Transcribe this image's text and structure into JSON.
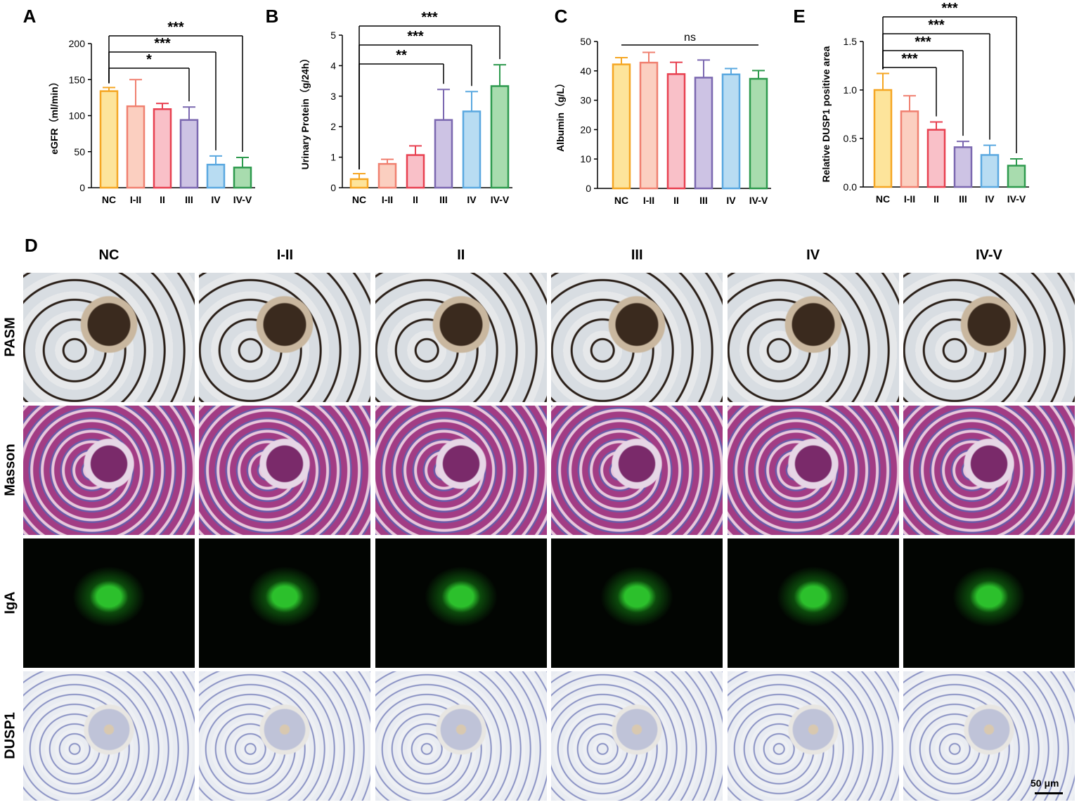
{
  "chart_data": [
    {
      "type": "bar",
      "panel": "A",
      "ylabel": "eGFR（ml/min）",
      "categories": [
        "NC",
        "I-II",
        "II",
        "III",
        "IV",
        "IV-V"
      ],
      "values": [
        134,
        113,
        109,
        94,
        32,
        28
      ],
      "errors": [
        5,
        37,
        8,
        18,
        12,
        14
      ],
      "colors": [
        "#fde49b",
        "#fbcfc0",
        "#f9c0c8",
        "#cdc3e4",
        "#b8dcf2",
        "#a8dcae"
      ],
      "edge_colors": [
        "#f5a623",
        "#f08070",
        "#e84050",
        "#7b68b0",
        "#5aa8e0",
        "#2e9a4e"
      ],
      "ylim": [
        0,
        200
      ],
      "yticks": [
        0,
        50,
        100,
        150,
        200
      ],
      "annotations": [
        {
          "text": "*",
          "pair": [
            "NC",
            "III"
          ]
        },
        {
          "text": "***",
          "pair": [
            "NC",
            "IV"
          ]
        },
        {
          "text": "***",
          "pair": [
            "NC",
            "IV-V"
          ]
        }
      ]
    },
    {
      "type": "bar",
      "panel": "B",
      "ylabel": "Urinary Protein（g/24h）",
      "categories": [
        "NC",
        "I-II",
        "II",
        "III",
        "IV",
        "IV-V"
      ],
      "values": [
        0.28,
        0.78,
        1.07,
        2.22,
        2.5,
        3.33
      ],
      "errors": [
        0.18,
        0.15,
        0.3,
        1.0,
        0.65,
        0.7
      ],
      "colors": [
        "#fde49b",
        "#fbcfc0",
        "#f9c0c8",
        "#cdc3e4",
        "#b8dcf2",
        "#a8dcae"
      ],
      "edge_colors": [
        "#f5a623",
        "#f08070",
        "#e84050",
        "#7b68b0",
        "#5aa8e0",
        "#2e9a4e"
      ],
      "ylim": [
        0,
        5
      ],
      "yticks": [
        0,
        1,
        2,
        3,
        4,
        5
      ],
      "annotations": [
        {
          "text": "**",
          "pair": [
            "NC",
            "III"
          ]
        },
        {
          "text": "***",
          "pair": [
            "NC",
            "IV"
          ]
        },
        {
          "text": "***",
          "pair": [
            "NC",
            "IV-V"
          ]
        }
      ]
    },
    {
      "type": "bar",
      "panel": "C",
      "ylabel": "Albumin（g/L）",
      "categories": [
        "NC",
        "I-II",
        "II",
        "III",
        "IV",
        "IV-V"
      ],
      "values": [
        42.2,
        42.8,
        38.9,
        37.7,
        38.8,
        37.3
      ],
      "errors": [
        2.3,
        3.5,
        4,
        6,
        2,
        2.8
      ],
      "colors": [
        "#fde49b",
        "#fbcfc0",
        "#f9c0c8",
        "#cdc3e4",
        "#b8dcf2",
        "#a8dcae"
      ],
      "edge_colors": [
        "#f5a623",
        "#f08070",
        "#e84050",
        "#7b68b0",
        "#5aa8e0",
        "#2e9a4e"
      ],
      "ylim": [
        0,
        50
      ],
      "yticks": [
        0,
        10,
        20,
        30,
        40,
        50
      ],
      "annotations": [
        {
          "text": "ns",
          "pair": [
            "NC",
            "IV-V"
          ],
          "bracket": false
        }
      ]
    },
    {
      "type": "bar",
      "panel": "E",
      "ylabel": "Relative DUSP1 positive area",
      "categories": [
        "NC",
        "I-II",
        "II",
        "III",
        "IV",
        "IV-V"
      ],
      "values": [
        1.0,
        0.78,
        0.59,
        0.41,
        0.33,
        0.22
      ],
      "errors": [
        0.17,
        0.16,
        0.08,
        0.06,
        0.1,
        0.07
      ],
      "colors": [
        "#fde49b",
        "#fbcfc0",
        "#f9c0c8",
        "#cdc3e4",
        "#b8dcf2",
        "#a8dcae"
      ],
      "edge_colors": [
        "#f5a623",
        "#f08070",
        "#e84050",
        "#7b68b0",
        "#5aa8e0",
        "#2e9a4e"
      ],
      "ylim": [
        0,
        1.5
      ],
      "yticks": [
        {
          "value": 0,
          "label": "0.0"
        },
        0.5,
        {
          "value": 1,
          "label": "1.0"
        },
        1.5
      ],
      "annotations": [
        {
          "text": "***",
          "pair": [
            "NC",
            "II"
          ]
        },
        {
          "text": "***",
          "pair": [
            "NC",
            "III"
          ]
        },
        {
          "text": "***",
          "pair": [
            "NC",
            "IV"
          ]
        },
        {
          "text": "***",
          "pair": [
            "NC",
            "IV-V"
          ]
        }
      ]
    }
  ],
  "figure_d": {
    "panel": "D",
    "columns": [
      "NC",
      "I-II",
      "II",
      "III",
      "IV",
      "IV-V"
    ],
    "rows": [
      "PASM",
      "Masson",
      "IgA",
      "DUSP1"
    ],
    "scale_bar": "50 μm"
  }
}
